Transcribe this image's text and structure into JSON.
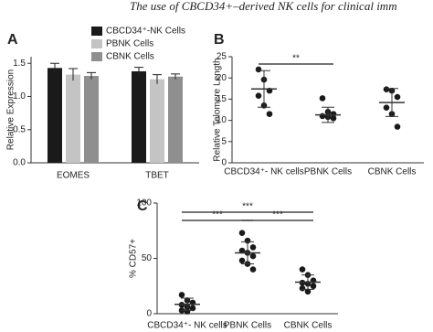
{
  "header": {
    "text": "The use of CBCD34+–derived NK cells for clinical imm"
  },
  "chart_data": [
    {
      "type": "bar",
      "panel": "A",
      "ylabel": "Relative Expression",
      "categories": [
        "EOMES",
        "TBET"
      ],
      "series": [
        {
          "name": "CBCD34⁺-NK Cells",
          "color": "#1a1a1a",
          "values": [
            1.43,
            1.38
          ],
          "errors": [
            0.07,
            0.06
          ]
        },
        {
          "name": "PBNK Cells",
          "color": "#c4c4c4",
          "values": [
            1.33,
            1.26
          ],
          "errors": [
            0.09,
            0.07
          ]
        },
        {
          "name": "CBNK Cells",
          "color": "#8f8f8f",
          "values": [
            1.31,
            1.3
          ],
          "errors": [
            0.05,
            0.04
          ]
        }
      ],
      "ylim": [
        0,
        1.6
      ],
      "yticks": [
        {
          "value": 0,
          "label": "0.0"
        },
        {
          "value": 0.5,
          "label": "0.5"
        },
        {
          "value": 1,
          "label": "1.0"
        },
        {
          "value": 1.5,
          "label": "1.5"
        }
      ]
    },
    {
      "type": "dot",
      "panel": "B",
      "ylabel": "Relative Telomere Length",
      "categories": [
        "CBCD34⁺- NK cells",
        "PBNK Cells",
        "CBNK Cells"
      ],
      "points": [
        [
          22,
          19.6,
          17,
          15.8,
          13.5,
          11.5
        ],
        [
          15.2,
          12,
          11.5,
          11,
          10.8,
          10.5
        ],
        [
          17.3,
          17,
          15.5,
          13,
          11.5,
          8.5
        ]
      ],
      "means": [
        17.4,
        11.3,
        14.2
      ],
      "sds": [
        4.3,
        1.8,
        3.3
      ],
      "comparisons": [
        {
          "label": "**",
          "groups": [
            0,
            1
          ]
        }
      ],
      "ylim": [
        0,
        25
      ],
      "yticks": [
        0,
        5,
        10,
        15,
        20,
        25
      ]
    },
    {
      "type": "dot",
      "panel": "C",
      "ylabel": "% CD57+",
      "categories": [
        "CBCD34⁺- NK cells",
        "PBNK Cells",
        "CBNK Cells"
      ],
      "points": [
        [
          17,
          12,
          10,
          8,
          6,
          5,
          3,
          2
        ],
        [
          73,
          66,
          60,
          57,
          55,
          52,
          48,
          45,
          40
        ],
        [
          40,
          35,
          30,
          28,
          27,
          25,
          23,
          20
        ]
      ],
      "means": [
        8.5,
        55,
        28.5
      ],
      "sds": [
        5.5,
        10,
        6.5
      ],
      "comparisons": [
        {
          "label": "***",
          "groups": [
            0,
            2
          ]
        },
        {
          "label": "***",
          "groups": [
            0,
            1
          ]
        },
        {
          "label": "***",
          "groups": [
            1,
            2
          ]
        }
      ],
      "ylim": [
        0,
        100
      ],
      "yticks": [
        0,
        50,
        100
      ]
    }
  ]
}
